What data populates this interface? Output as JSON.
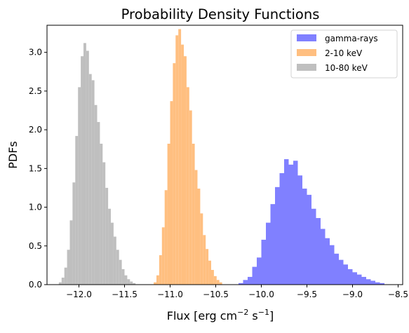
{
  "chart_data": {
    "type": "bar",
    "title": "Probability Density Functions",
    "xlabel_parts": {
      "base": "Flux [erg cm",
      "exp1": "−2",
      "mid": " s",
      "exp2": "−1",
      "end": "]"
    },
    "ylabel": "PDFs",
    "xlim": [
      -12.35,
      -8.45
    ],
    "ylim": [
      0,
      3.35
    ],
    "xticks": [
      -12.0,
      -11.5,
      -11.0,
      -10.5,
      -10.0,
      -9.5,
      -9.0,
      -8.5
    ],
    "xtick_labels": [
      "−12.0",
      "−11.5",
      "−11.0",
      "−10.5",
      "−10.0",
      "−9.5",
      "−9.0",
      "−8.5"
    ],
    "yticks": [
      0.0,
      0.5,
      1.0,
      1.5,
      2.0,
      2.5,
      3.0
    ],
    "ytick_labels": [
      "0.0",
      "0.5",
      "1.0",
      "1.5",
      "2.0",
      "2.5",
      "3.0"
    ],
    "legend_position": "top-right",
    "grid": false,
    "series": [
      {
        "name": "gamma-rays",
        "color": "#8080ff",
        "bin_edges": [
          -10.25,
          -10.2,
          -10.15,
          -10.1,
          -10.05,
          -10.0,
          -9.95,
          -9.9,
          -9.85,
          -9.8,
          -9.75,
          -9.7,
          -9.65,
          -9.6,
          -9.55,
          -9.5,
          -9.45,
          -9.4,
          -9.35,
          -9.3,
          -9.25,
          -9.2,
          -9.15,
          -9.1,
          -9.05,
          -9.0,
          -8.95,
          -8.9,
          -8.85,
          -8.8,
          -8.75,
          -8.7,
          -8.65
        ],
        "values": [
          0.02,
          0.06,
          0.1,
          0.23,
          0.35,
          0.58,
          0.8,
          1.04,
          1.26,
          1.44,
          1.62,
          1.55,
          1.6,
          1.41,
          1.24,
          1.16,
          0.98,
          0.86,
          0.72,
          0.6,
          0.51,
          0.4,
          0.32,
          0.26,
          0.2,
          0.16,
          0.13,
          0.1,
          0.07,
          0.05,
          0.03,
          0.02
        ]
      },
      {
        "name": "2-10 keV",
        "color": "#ffbf80",
        "bin_edges": [
          -11.18,
          -11.15,
          -11.12,
          -11.09,
          -11.06,
          -11.03,
          -11.0,
          -10.97,
          -10.94,
          -10.91,
          -10.88,
          -10.85,
          -10.82,
          -10.79,
          -10.76,
          -10.73,
          -10.7,
          -10.67,
          -10.64,
          -10.61,
          -10.58,
          -10.55,
          -10.52,
          -10.49,
          -10.46,
          -10.43
        ],
        "values": [
          0.03,
          0.12,
          0.38,
          0.74,
          1.22,
          1.82,
          2.37,
          2.86,
          3.22,
          3.3,
          3.1,
          2.95,
          2.55,
          2.25,
          1.82,
          1.48,
          1.24,
          0.92,
          0.64,
          0.46,
          0.31,
          0.19,
          0.11,
          0.06,
          0.03
        ]
      },
      {
        "name": "10-80 keV",
        "color": "#bfbfbf",
        "bin_edges": [
          -12.22,
          -12.19,
          -12.16,
          -12.13,
          -12.1,
          -12.07,
          -12.04,
          -12.01,
          -11.98,
          -11.95,
          -11.92,
          -11.89,
          -11.86,
          -11.83,
          -11.8,
          -11.77,
          -11.74,
          -11.71,
          -11.68,
          -11.65,
          -11.62,
          -11.59,
          -11.56,
          -11.53,
          -11.5,
          -11.47,
          -11.44,
          -11.41,
          -11.38
        ],
        "values": [
          0.03,
          0.09,
          0.22,
          0.45,
          0.83,
          1.32,
          1.92,
          2.55,
          2.95,
          3.12,
          3.02,
          2.72,
          2.64,
          2.32,
          2.1,
          1.82,
          1.58,
          1.25,
          0.98,
          0.8,
          0.62,
          0.45,
          0.32,
          0.2,
          0.12,
          0.07,
          0.04,
          0.02
        ]
      }
    ]
  }
}
